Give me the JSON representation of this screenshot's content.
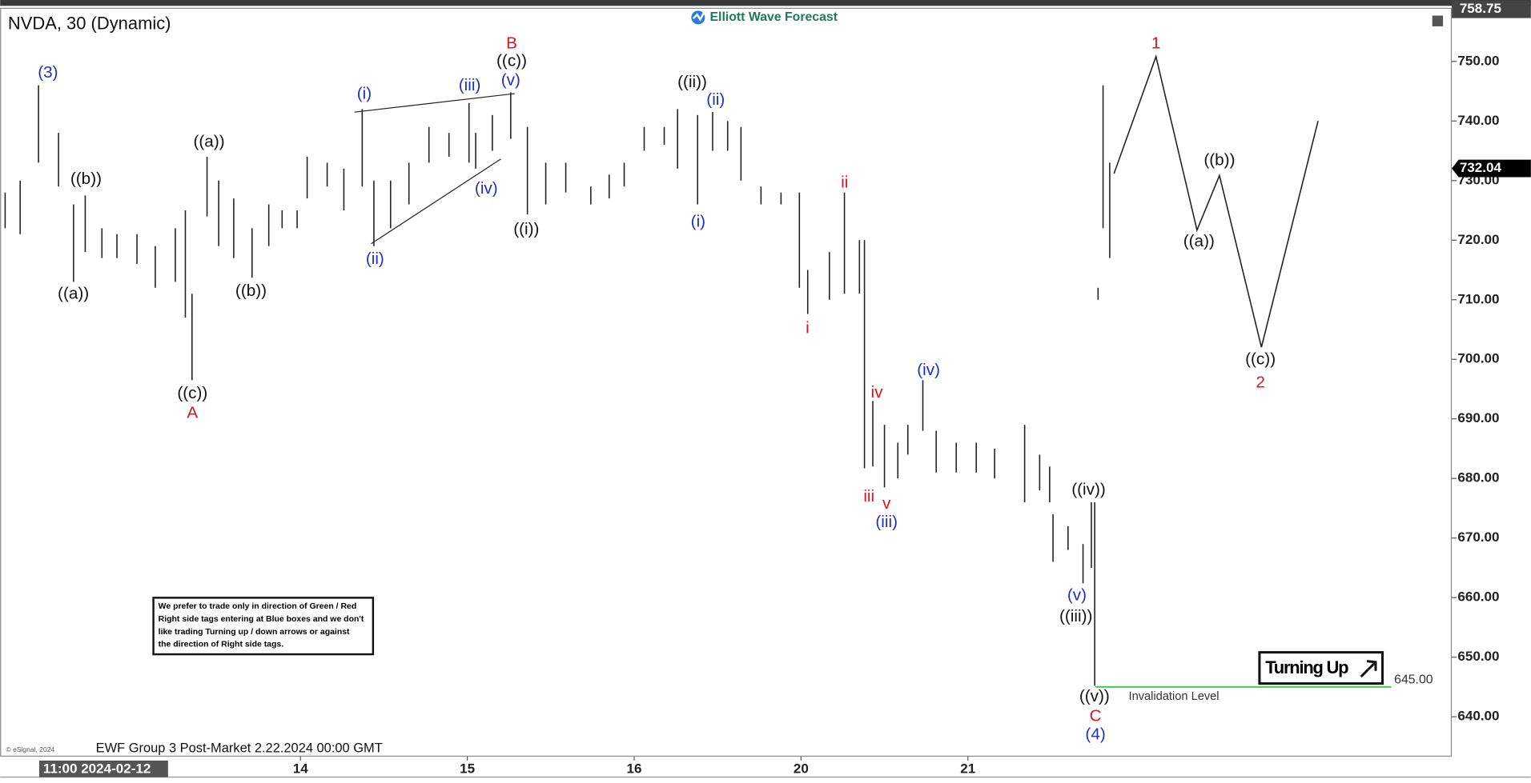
{
  "chart_data": {
    "type": "ohlc",
    "title": "NVDA, 30 (Dynamic)",
    "brand": "Elliott Wave Forecast",
    "footer": "EWF Group 3 Post-Market 2.22.2024 00:00 GMT",
    "copyright": "© eSignal, 2024",
    "x_cursor_label": "11:00 2024-02-12",
    "note": [
      "We prefer to trade only in direction of Green / Red",
      "Right side tags entering at Blue boxes and we don't",
      "like trading Turning up / down arrows or against",
      "the direction of Right side tags."
    ],
    "badge": "Turning Up",
    "xlim": [
      0.2,
      8.9
    ],
    "ylim": [
      633.3,
      759.0
    ],
    "xticks": [
      {
        "value": 2,
        "label": "14"
      },
      {
        "value": 3,
        "label": "15"
      },
      {
        "value": 4,
        "label": "16"
      },
      {
        "value": 5,
        "label": "20"
      },
      {
        "value": 6,
        "label": "21"
      }
    ],
    "yticks": [
      {
        "value": 640,
        "label": "640.00"
      },
      {
        "value": 650,
        "label": "650.00"
      },
      {
        "value": 660,
        "label": "660.00"
      },
      {
        "value": 670,
        "label": "670.00"
      },
      {
        "value": 680,
        "label": "680.00"
      },
      {
        "value": 690,
        "label": "690.00"
      },
      {
        "value": 700,
        "label": "700.00"
      },
      {
        "value": 710,
        "label": "710.00"
      },
      {
        "value": 720,
        "label": "720.00"
      },
      {
        "value": 730,
        "label": "730.00"
      },
      {
        "value": 740,
        "label": "740.00"
      },
      {
        "value": 750,
        "label": "750.00"
      }
    ],
    "high_price": 758.75,
    "last_price": 732.04,
    "invalidation": {
      "value": 645,
      "label": "645.00",
      "text": "Invalidation Level",
      "color": "#3ecf4a"
    },
    "series": {
      "color": "#222",
      "x": [
        0.23,
        0.32,
        0.43,
        0.55,
        0.64,
        0.71,
        0.81,
        0.9,
        1.02,
        1.13,
        1.25,
        1.31,
        1.35,
        1.44,
        1.51,
        1.6,
        1.71,
        1.81,
        1.89,
        1.98,
        2.04,
        2.16,
        2.26,
        2.37,
        2.44,
        2.54,
        2.65,
        2.77,
        2.89,
        3.01,
        3.05,
        3.15,
        3.26,
        3.36,
        3.47,
        3.59,
        3.74,
        3.85,
        3.94,
        4.06,
        4.18,
        4.26,
        4.38,
        4.47,
        4.56,
        4.64,
        4.76,
        4.88,
        4.99,
        5.04,
        5.17,
        5.26,
        5.35,
        5.38,
        5.43,
        5.5,
        5.58,
        5.64,
        5.73,
        5.81,
        5.93,
        6.05,
        6.16,
        6.34,
        6.43,
        6.49,
        6.51,
        6.6,
        6.69,
        6.74,
        6.76,
        6.78,
        6.81,
        6.85
      ],
      "high": [
        728,
        730,
        746,
        738,
        726,
        727.5,
        722,
        721,
        721,
        719,
        722,
        725,
        711,
        734,
        730,
        727,
        722,
        726,
        725,
        725,
        734,
        733,
        732,
        742,
        730,
        730,
        733,
        739,
        738,
        743,
        738,
        741,
        744.8,
        739,
        733,
        733,
        729,
        731,
        733,
        739,
        739,
        742,
        741,
        741.5,
        740,
        739,
        729,
        728,
        728,
        715,
        718,
        728,
        720,
        720,
        693,
        689,
        686,
        689,
        696.5,
        688,
        686,
        686,
        685,
        689,
        684,
        682,
        674,
        672,
        669,
        676,
        676,
        712,
        746,
        733
      ],
      "low": [
        722,
        721,
        733,
        729,
        713,
        718,
        717,
        717,
        716,
        712,
        713,
        707,
        696.5,
        724,
        719,
        717,
        713.7,
        719,
        722,
        722,
        727,
        729,
        725,
        729,
        719,
        722,
        726,
        733,
        734,
        733,
        732,
        735,
        737,
        724.3,
        726,
        728,
        726,
        727,
        729,
        735,
        736,
        732,
        726,
        735,
        735,
        730,
        726,
        726,
        712,
        707.6,
        710,
        711,
        711,
        681.7,
        682,
        678.5,
        680,
        684,
        688,
        681,
        681,
        681,
        680,
        676,
        678,
        676,
        666,
        668,
        662.4,
        665,
        645.2,
        710,
        722,
        717
      ]
    },
    "annotations": [
      "(3)",
      "((b))",
      "((a))",
      "((a))",
      "((c))",
      "A",
      "((b))",
      "(i)",
      "(ii)",
      "(iii)",
      "(v)",
      "((c))",
      "B",
      "(iv)",
      "((i))",
      "((ii))",
      "(ii)",
      "(i)",
      "ii",
      "i",
      "iv",
      "iii",
      "v",
      "(iii)",
      "(iv)",
      "((iv))",
      "(v)",
      "((iii))",
      "((v))",
      "C",
      "(4)",
      "1",
      "((b))",
      "((a))",
      "((c))",
      "2"
    ]
  }
}
